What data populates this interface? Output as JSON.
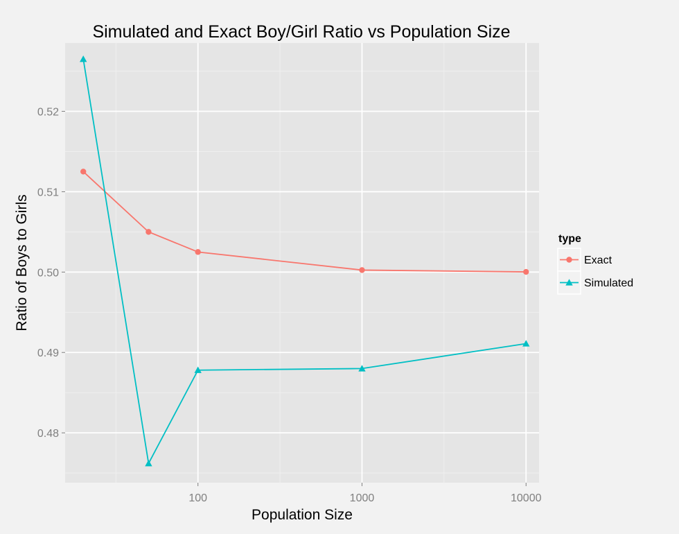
{
  "chart_data": {
    "type": "line",
    "title": "Simulated and Exact Boy/Girl Ratio vs Population Size",
    "xlabel": "Population Size",
    "ylabel": "Ratio of Boys to Girls",
    "x_scale": "log10",
    "xlim": [
      15.5,
      12000
    ],
    "ylim": [
      0.4738,
      0.5285
    ],
    "x_ticks": [
      100,
      1000,
      10000
    ],
    "x_tick_labels": [
      "100",
      "1000",
      "10000"
    ],
    "y_ticks": [
      0.48,
      0.49,
      0.5,
      0.51,
      0.52
    ],
    "y_tick_labels": [
      "0.48",
      "0.49",
      "0.50",
      "0.51",
      "0.52"
    ],
    "grid": true,
    "legend": {
      "title": "type",
      "position": "right"
    },
    "x": [
      20,
      50,
      100,
      1000,
      10000
    ],
    "series": [
      {
        "name": "Exact",
        "color": "#f8766d",
        "marker": "circle",
        "values": [
          0.5125,
          0.505,
          0.5025,
          0.50025,
          0.500025
        ]
      },
      {
        "name": "Simulated",
        "color": "#00bfc4",
        "marker": "triangle",
        "values": [
          0.5265,
          0.4762,
          0.4878,
          0.488,
          0.4911
        ]
      }
    ]
  }
}
